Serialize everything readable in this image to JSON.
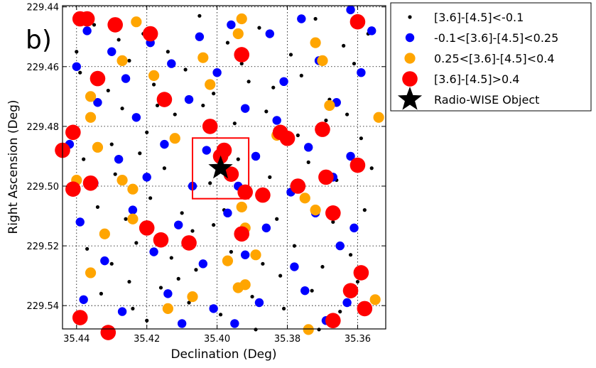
{
  "chart_data": {
    "type": "scatter",
    "panel_label": "b)",
    "xlabel": "Declination (Deg)",
    "ylabel": "Right Ascension (Deg)",
    "xlim": [
      35.444,
      35.352
    ],
    "ylim": [
      229.4396,
      229.5478
    ],
    "xticks": [
      35.44,
      35.42,
      35.4,
      35.38,
      35.36
    ],
    "xtick_labels": [
      "35.44",
      "35.42",
      "35.40",
      "35.38",
      "35.36"
    ],
    "yticks": [
      229.44,
      229.46,
      229.48,
      229.5,
      229.52,
      229.54
    ],
    "ytick_labels": [
      "229.44",
      "229.46",
      "229.48",
      "229.50",
      "229.52",
      "229.54"
    ],
    "grid": true,
    "legend_position": "outside-right-top",
    "highlight_box": {
      "x_range": [
        35.407,
        35.391
      ],
      "y_range": [
        229.4839,
        229.5042
      ],
      "color": "#ff0000"
    },
    "series": [
      {
        "name": "[3.6]-[4.5]<-0.1",
        "color": "#000000",
        "marker": "small-dot",
        "points": [
          [
            35.435,
            229.446
          ],
          [
            35.428,
            229.451
          ],
          [
            35.421,
            229.449
          ],
          [
            35.414,
            229.455
          ],
          [
            35.405,
            229.443
          ],
          [
            35.397,
            229.452
          ],
          [
            35.388,
            229.447
          ],
          [
            35.379,
            229.456
          ],
          [
            35.372,
            229.444
          ],
          [
            35.364,
            229.453
          ],
          [
            35.357,
            229.449
          ],
          [
            35.439,
            229.462
          ],
          [
            35.431,
            229.468
          ],
          [
            35.425,
            229.458
          ],
          [
            35.418,
            229.466
          ],
          [
            35.409,
            229.461
          ],
          [
            35.401,
            229.469
          ],
          [
            35.393,
            229.459
          ],
          [
            35.384,
            229.467
          ],
          [
            35.376,
            229.463
          ],
          [
            35.368,
            229.471
          ],
          [
            35.361,
            229.459
          ],
          [
            35.436,
            229.478
          ],
          [
            35.427,
            229.474
          ],
          [
            35.42,
            229.482
          ],
          [
            35.412,
            229.476
          ],
          [
            35.404,
            229.473
          ],
          [
            35.395,
            229.479
          ],
          [
            35.386,
            229.475
          ],
          [
            35.377,
            229.483
          ],
          [
            35.369,
            229.478
          ],
          [
            35.359,
            229.484
          ],
          [
            35.438,
            229.491
          ],
          [
            35.429,
            229.496
          ],
          [
            35.422,
            229.489
          ],
          [
            35.415,
            229.494
          ],
          [
            35.402,
            229.499
          ],
          [
            35.394,
            229.491
          ],
          [
            35.385,
            229.497
          ],
          [
            35.374,
            229.492
          ],
          [
            35.366,
            229.498
          ],
          [
            35.356,
            229.494
          ],
          [
            35.434,
            229.507
          ],
          [
            35.426,
            229.511
          ],
          [
            35.419,
            229.504
          ],
          [
            35.41,
            229.509
          ],
          [
            35.401,
            229.513
          ],
          [
            35.392,
            229.507
          ],
          [
            35.383,
            229.511
          ],
          [
            35.375,
            229.505
          ],
          [
            35.367,
            229.512
          ],
          [
            35.358,
            229.508
          ],
          [
            35.437,
            229.521
          ],
          [
            35.43,
            229.526
          ],
          [
            35.423,
            229.519
          ],
          [
            35.413,
            229.524
          ],
          [
            35.406,
            229.528
          ],
          [
            35.396,
            229.522
          ],
          [
            35.387,
            229.526
          ],
          [
            35.378,
            229.52
          ],
          [
            35.37,
            229.527
          ],
          [
            35.362,
            229.523
          ],
          [
            35.433,
            229.536
          ],
          [
            35.424,
            229.541
          ],
          [
            35.416,
            229.534
          ],
          [
            35.408,
            229.539
          ],
          [
            35.399,
            229.543
          ],
          [
            35.39,
            229.537
          ],
          [
            35.381,
            229.541
          ],
          [
            35.373,
            229.535
          ],
          [
            35.365,
            229.542
          ],
          [
            35.355,
            229.538
          ],
          [
            35.44,
            229.455
          ],
          [
            35.417,
            229.473
          ],
          [
            35.391,
            229.465
          ],
          [
            35.363,
            229.476
          ],
          [
            35.43,
            229.486
          ],
          [
            35.407,
            229.515
          ],
          [
            35.382,
            229.53
          ],
          [
            35.36,
            229.532
          ],
          [
            35.42,
            229.545
          ],
          [
            35.398,
            229.508
          ],
          [
            35.389,
            229.548
          ],
          [
            35.371,
            229.548
          ],
          [
            35.425,
            229.532
          ],
          [
            35.411,
            229.531
          ]
        ]
      },
      {
        "name": "-0.1<[3.6]-[4.5]<0.25",
        "color": "#0000ff",
        "marker": "medium-dot",
        "points": [
          [
            35.437,
            229.448
          ],
          [
            35.43,
            229.455
          ],
          [
            35.419,
            229.452
          ],
          [
            35.405,
            229.45
          ],
          [
            35.396,
            229.446
          ],
          [
            35.385,
            229.449
          ],
          [
            35.376,
            229.444
          ],
          [
            35.362,
            229.441
          ],
          [
            35.356,
            229.448
          ],
          [
            35.44,
            229.46
          ],
          [
            35.426,
            229.464
          ],
          [
            35.413,
            229.459
          ],
          [
            35.4,
            229.462
          ],
          [
            35.381,
            229.465
          ],
          [
            35.371,
            229.458
          ],
          [
            35.359,
            229.462
          ],
          [
            35.434,
            229.472
          ],
          [
            35.423,
            229.477
          ],
          [
            35.408,
            229.471
          ],
          [
            35.392,
            229.474
          ],
          [
            35.383,
            229.478
          ],
          [
            35.366,
            229.472
          ],
          [
            35.442,
            229.486
          ],
          [
            35.428,
            229.491
          ],
          [
            35.415,
            229.486
          ],
          [
            35.403,
            229.488
          ],
          [
            35.389,
            229.49
          ],
          [
            35.374,
            229.487
          ],
          [
            35.362,
            229.49
          ],
          [
            35.435,
            229.499
          ],
          [
            35.42,
            229.497
          ],
          [
            35.407,
            229.5
          ],
          [
            35.394,
            229.5
          ],
          [
            35.379,
            229.502
          ],
          [
            35.367,
            229.497
          ],
          [
            35.439,
            229.512
          ],
          [
            35.424,
            229.508
          ],
          [
            35.411,
            229.513
          ],
          [
            35.397,
            229.509
          ],
          [
            35.386,
            229.514
          ],
          [
            35.372,
            229.509
          ],
          [
            35.361,
            229.514
          ],
          [
            35.432,
            229.525
          ],
          [
            35.418,
            229.522
          ],
          [
            35.404,
            229.526
          ],
          [
            35.392,
            229.523
          ],
          [
            35.378,
            229.527
          ],
          [
            35.365,
            229.52
          ],
          [
            35.438,
            229.538
          ],
          [
            35.427,
            229.542
          ],
          [
            35.414,
            229.536
          ],
          [
            35.401,
            229.541
          ],
          [
            35.388,
            229.539
          ],
          [
            35.375,
            229.535
          ],
          [
            35.363,
            229.539
          ],
          [
            35.41,
            229.546
          ],
          [
            35.395,
            229.546
          ],
          [
            35.369,
            229.545
          ]
        ]
      },
      {
        "name": "0.25<[3.6]-[4.5]<0.4",
        "color": "#ffa500",
        "marker": "large-dot",
        "points": [
          [
            35.423,
            229.445
          ],
          [
            35.394,
            229.449
          ],
          [
            35.393,
            229.444
          ],
          [
            35.372,
            229.452
          ],
          [
            35.427,
            229.458
          ],
          [
            35.404,
            229.457
          ],
          [
            35.37,
            229.458
          ],
          [
            35.436,
            229.47
          ],
          [
            35.418,
            229.463
          ],
          [
            35.402,
            229.466
          ],
          [
            35.368,
            229.473
          ],
          [
            35.436,
            229.477
          ],
          [
            35.412,
            229.484
          ],
          [
            35.383,
            229.483
          ],
          [
            35.354,
            229.477
          ],
          [
            35.434,
            229.487
          ],
          [
            35.44,
            229.498
          ],
          [
            35.427,
            229.498
          ],
          [
            35.424,
            229.501
          ],
          [
            35.375,
            229.504
          ],
          [
            35.424,
            229.511
          ],
          [
            35.392,
            229.514
          ],
          [
            35.393,
            229.507
          ],
          [
            35.372,
            229.508
          ],
          [
            35.432,
            229.516
          ],
          [
            35.389,
            229.523
          ],
          [
            35.397,
            229.525
          ],
          [
            35.436,
            229.529
          ],
          [
            35.392,
            229.533
          ],
          [
            35.394,
            229.534
          ],
          [
            35.407,
            229.537
          ],
          [
            35.414,
            229.541
          ],
          [
            35.355,
            229.538
          ],
          [
            35.374,
            229.548
          ],
          [
            35.367,
            229.545
          ]
        ]
      },
      {
        "name": "[3.6]-[4.5]>0.4",
        "color": "#ff0000",
        "marker": "extra-large-dot",
        "points": [
          [
            35.439,
            229.444
          ],
          [
            35.437,
            229.444
          ],
          [
            35.429,
            229.446
          ],
          [
            35.419,
            229.449
          ],
          [
            35.393,
            229.456
          ],
          [
            35.434,
            229.464
          ],
          [
            35.415,
            229.471
          ],
          [
            35.441,
            229.482
          ],
          [
            35.402,
            229.48
          ],
          [
            35.382,
            229.482
          ],
          [
            35.38,
            229.484
          ],
          [
            35.37,
            229.481
          ],
          [
            35.444,
            229.488
          ],
          [
            35.398,
            229.488
          ],
          [
            35.399,
            229.49
          ],
          [
            35.396,
            229.496
          ],
          [
            35.392,
            229.502
          ],
          [
            35.387,
            229.503
          ],
          [
            35.441,
            229.501
          ],
          [
            35.436,
            229.499
          ],
          [
            35.377,
            229.5
          ],
          [
            35.369,
            229.497
          ],
          [
            35.36,
            229.493
          ],
          [
            35.367,
            229.509
          ],
          [
            35.42,
            229.514
          ],
          [
            35.416,
            229.518
          ],
          [
            35.408,
            229.519
          ],
          [
            35.393,
            229.516
          ],
          [
            35.359,
            229.529
          ],
          [
            35.362,
            229.535
          ],
          [
            35.358,
            229.541
          ],
          [
            35.439,
            229.544
          ],
          [
            35.431,
            229.549
          ],
          [
            35.367,
            229.545
          ],
          [
            35.36,
            229.445
          ]
        ]
      },
      {
        "name": "Radio-WISE Object",
        "color": "#000000",
        "marker": "star",
        "points": [
          [
            35.399,
            229.494
          ]
        ]
      }
    ]
  }
}
